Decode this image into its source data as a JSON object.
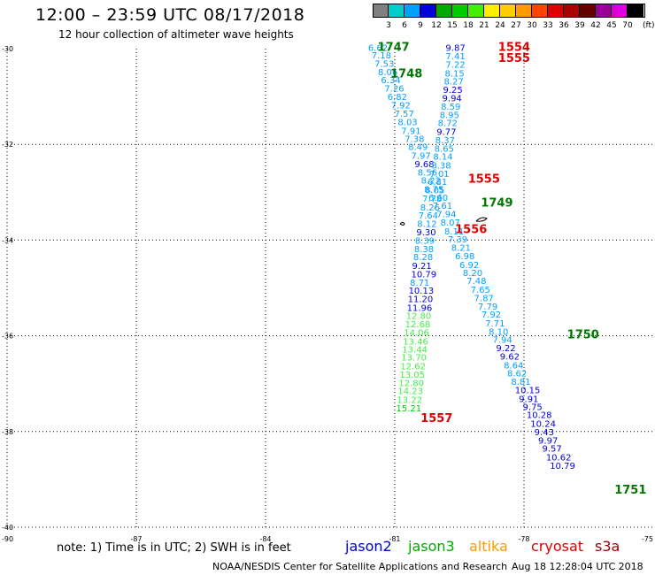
{
  "header": {
    "title": "12:00 – 23:59 UTC 08/17/2018",
    "subtitle": "12 hour collection of altimeter wave heights"
  },
  "legend": {
    "labels": [
      "3",
      "6",
      "9",
      "12",
      "15",
      "18",
      "21",
      "24",
      "27",
      "30",
      "33",
      "36",
      "39",
      "42",
      "45",
      "70"
    ],
    "colors": [
      "#808080",
      "#00cccc",
      "#00a0ff",
      "#0000dd",
      "#00aa00",
      "#00cc00",
      "#44ee00",
      "#ffee00",
      "#ffcc00",
      "#ff9900",
      "#ff4400",
      "#dd0000",
      "#aa0000",
      "#660000",
      "#990099",
      "#dd00dd",
      "#000000"
    ],
    "unit": "(ft)"
  },
  "axes": {
    "lat_labels": [
      "-30",
      "-32",
      "-34",
      "-36",
      "-38",
      "-40"
    ],
    "lon_labels": [
      "-90",
      "-87",
      "-84",
      "-81",
      "-78",
      "-75"
    ]
  },
  "time_labels": [
    {
      "text": "1747",
      "lon": -81.4,
      "lat": -30.05,
      "color": "#007700"
    },
    {
      "text": "1748",
      "lon": -81.1,
      "lat": -30.6,
      "color": "#007700"
    },
    {
      "text": "1554",
      "lon": -78.6,
      "lat": -30.05,
      "color": "#dd0000"
    },
    {
      "text": "1555",
      "lon": -78.6,
      "lat": -30.28,
      "color": "#dd0000"
    },
    {
      "text": "1555",
      "lon": -79.3,
      "lat": -32.8,
      "color": "#dd0000"
    },
    {
      "text": "1749",
      "lon": -79.0,
      "lat": -33.3,
      "color": "#007700"
    },
    {
      "text": "1556",
      "lon": -79.6,
      "lat": -33.85,
      "color": "#dd0000"
    },
    {
      "text": "1750",
      "lon": -77.0,
      "lat": -36.05,
      "color": "#007700"
    },
    {
      "text": "1557",
      "lon": -80.4,
      "lat": -37.8,
      "color": "#dd0000"
    },
    {
      "text": "1751",
      "lon": -75.9,
      "lat": -39.3,
      "color": "#007700"
    }
  ],
  "tracks": [
    {
      "name": "west-descending-track",
      "values": [
        {
          "v": "6.62",
          "lon": -81.62,
          "lat": -30.05
        },
        {
          "v": "7.18",
          "lon": -81.54,
          "lat": -30.2
        },
        {
          "v": "7.53",
          "lon": -81.47,
          "lat": -30.38
        },
        {
          "v": "8.06",
          "lon": -81.39,
          "lat": -30.55
        },
        {
          "v": "6.34",
          "lon": -81.32,
          "lat": -30.72
        },
        {
          "v": "7.26",
          "lon": -81.24,
          "lat": -30.9
        },
        {
          "v": "6.82",
          "lon": -81.17,
          "lat": -31.07
        },
        {
          "v": "7.92",
          "lon": -81.09,
          "lat": -31.25
        },
        {
          "v": "7.57",
          "lon": -81.01,
          "lat": -31.42
        },
        {
          "v": "8.03",
          "lon": -80.93,
          "lat": -31.6
        },
        {
          "v": "7.91",
          "lon": -80.85,
          "lat": -31.78
        },
        {
          "v": "7.38",
          "lon": -80.77,
          "lat": -31.95
        },
        {
          "v": "8.49",
          "lon": -80.69,
          "lat": -32.12
        },
        {
          "v": "7.97",
          "lon": -80.62,
          "lat": -32.3
        },
        {
          "v": "9.68",
          "lon": -80.54,
          "lat": -32.48
        },
        {
          "v": "8.56",
          "lon": -80.47,
          "lat": -32.65
        },
        {
          "v": "8.22",
          "lon": -80.39,
          "lat": -32.82
        },
        {
          "v": "8.75",
          "lon": -80.32,
          "lat": -33.0
        },
        {
          "v": "6.60",
          "lon": -80.22,
          "lat": -33.18
        },
        {
          "v": "7.61",
          "lon": -80.12,
          "lat": -33.35
        },
        {
          "v": "7.94",
          "lon": -80.03,
          "lat": -33.52
        },
        {
          "v": "8.07",
          "lon": -79.94,
          "lat": -33.7
        },
        {
          "v": "8.11",
          "lon": -79.85,
          "lat": -33.88
        },
        {
          "v": "7.39",
          "lon": -79.77,
          "lat": -34.05
        },
        {
          "v": "8.21",
          "lon": -79.69,
          "lat": -34.22
        },
        {
          "v": "6.98",
          "lon": -79.6,
          "lat": -34.4
        },
        {
          "v": "6.92",
          "lon": -79.5,
          "lat": -34.58
        },
        {
          "v": "8.20",
          "lon": -79.42,
          "lat": -34.75
        },
        {
          "v": "7.48",
          "lon": -79.33,
          "lat": -34.92
        },
        {
          "v": "7.65",
          "lon": -79.24,
          "lat": -35.1
        },
        {
          "v": "7.87",
          "lon": -79.16,
          "lat": -35.28
        },
        {
          "v": "7.79",
          "lon": -79.07,
          "lat": -35.45
        },
        {
          "v": "7.92",
          "lon": -78.99,
          "lat": -35.62
        },
        {
          "v": "7.71",
          "lon": -78.9,
          "lat": -35.8
        },
        {
          "v": "8.10",
          "lon": -78.82,
          "lat": -35.98
        },
        {
          "v": "7.94",
          "lon": -78.73,
          "lat": -36.15
        },
        {
          "v": "9.22",
          "lon": -78.65,
          "lat": -36.32
        },
        {
          "v": "9.62",
          "lon": -78.56,
          "lat": -36.5
        },
        {
          "v": "8.64",
          "lon": -78.47,
          "lat": -36.68
        },
        {
          "v": "8.62",
          "lon": -78.39,
          "lat": -36.85
        },
        {
          "v": "8.81",
          "lon": -78.3,
          "lat": -37.02
        },
        {
          "v": "10.15",
          "lon": -78.21,
          "lat": -37.2
        },
        {
          "v": "9.91",
          "lon": -78.12,
          "lat": -37.38
        },
        {
          "v": "9.75",
          "lon": -78.03,
          "lat": -37.55
        },
        {
          "v": "10.28",
          "lon": -77.94,
          "lat": -37.72
        },
        {
          "v": "10.24",
          "lon": -77.85,
          "lat": -37.9
        },
        {
          "v": "9.43",
          "lon": -77.76,
          "lat": -38.08
        },
        {
          "v": "9.97",
          "lon": -77.67,
          "lat": -38.25
        },
        {
          "v": "9.57",
          "lon": -77.58,
          "lat": -38.42
        },
        {
          "v": "10.62",
          "lon": -77.49,
          "lat": -38.6
        },
        {
          "v": "10.79",
          "lon": -77.4,
          "lat": -38.78
        }
      ]
    },
    {
      "name": "east-ascending-track",
      "values": [
        {
          "v": "9.87",
          "lon": -79.82,
          "lat": -30.05
        },
        {
          "v": "7.41",
          "lon": -79.82,
          "lat": -30.22
        },
        {
          "v": "7.22",
          "lon": -79.82,
          "lat": -30.4
        },
        {
          "v": "8.15",
          "lon": -79.84,
          "lat": -30.58
        },
        {
          "v": "8.27",
          "lon": -79.86,
          "lat": -30.75
        },
        {
          "v": "9.25",
          "lon": -79.88,
          "lat": -30.92
        },
        {
          "v": "9.94",
          "lon": -79.9,
          "lat": -31.1
        },
        {
          "v": "8.59",
          "lon": -79.93,
          "lat": -31.28
        },
        {
          "v": "8.95",
          "lon": -79.96,
          "lat": -31.45
        },
        {
          "v": "8.72",
          "lon": -80.0,
          "lat": -31.62
        },
        {
          "v": "9.77",
          "lon": -80.03,
          "lat": -31.8
        },
        {
          "v": "8.37",
          "lon": -80.06,
          "lat": -31.98
        },
        {
          "v": "8.65",
          "lon": -80.08,
          "lat": -32.15
        },
        {
          "v": "8.14",
          "lon": -80.11,
          "lat": -32.32
        },
        {
          "v": "8.38",
          "lon": -80.15,
          "lat": -32.5
        },
        {
          "v": "7.01",
          "lon": -80.19,
          "lat": -32.68
        },
        {
          "v": "6.81",
          "lon": -80.24,
          "lat": -32.85
        },
        {
          "v": "8.05",
          "lon": -80.3,
          "lat": -33.02
        },
        {
          "v": "7.78",
          "lon": -80.36,
          "lat": -33.2
        },
        {
          "v": "8.26",
          "lon": -80.41,
          "lat": -33.38
        },
        {
          "v": "7.64",
          "lon": -80.45,
          "lat": -33.55
        },
        {
          "v": "8.12",
          "lon": -80.48,
          "lat": -33.72
        },
        {
          "v": "9.30",
          "lon": -80.5,
          "lat": -33.9
        },
        {
          "v": "8.39",
          "lon": -80.53,
          "lat": -34.08
        },
        {
          "v": "8.38",
          "lon": -80.55,
          "lat": -34.25
        },
        {
          "v": "8.28",
          "lon": -80.57,
          "lat": -34.42
        },
        {
          "v": "9.21",
          "lon": -80.6,
          "lat": -34.6
        },
        {
          "v": "10.79",
          "lon": -80.62,
          "lat": -34.78
        },
        {
          "v": "8.71",
          "lon": -80.65,
          "lat": -34.95
        },
        {
          "v": "10.13",
          "lon": -80.68,
          "lat": -35.12
        },
        {
          "v": "11.20",
          "lon": -80.7,
          "lat": -35.3
        },
        {
          "v": "11.96",
          "lon": -80.72,
          "lat": -35.48
        },
        {
          "v": "12.80",
          "lon": -80.74,
          "lat": -35.65
        },
        {
          "v": "12.68",
          "lon": -80.76,
          "lat": -35.82
        },
        {
          "v": "14.06",
          "lon": -80.79,
          "lat": -36.0
        },
        {
          "v": "13.46",
          "lon": -80.81,
          "lat": -36.18
        },
        {
          "v": "13.44",
          "lon": -80.83,
          "lat": -36.35
        },
        {
          "v": "13.70",
          "lon": -80.85,
          "lat": -36.52
        },
        {
          "v": "12.62",
          "lon": -80.87,
          "lat": -36.7
        },
        {
          "v": "13.05",
          "lon": -80.89,
          "lat": -36.88
        },
        {
          "v": "12.80",
          "lon": -80.91,
          "lat": -37.05
        },
        {
          "v": "14.23",
          "lon": -80.93,
          "lat": -37.22
        },
        {
          "v": "13.22",
          "lon": -80.95,
          "lat": -37.4
        },
        {
          "v": "15.21",
          "lon": -80.97,
          "lat": -37.58
        }
      ]
    }
  ],
  "note": "note: 1) Time is in UTC; 2) SWH is in feet",
  "satellites": [
    {
      "name": "jason2",
      "color": "#0000dd"
    },
    {
      "name": "jason3",
      "color": "#00aa00"
    },
    {
      "name": "altika",
      "color": "#ff9900"
    },
    {
      "name": "cryosat",
      "color": "#dd0000"
    },
    {
      "name": "s3a",
      "color": "#990000"
    }
  ],
  "credit": "NOAA/NESDIS Center for Satellite Applications and Research",
  "timestamp": "Aug 18 12:28:04 UTC 2018"
}
